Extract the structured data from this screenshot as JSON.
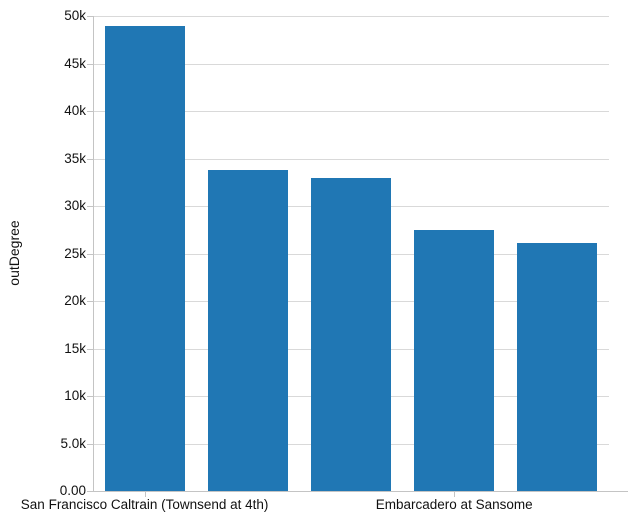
{
  "chart_data": {
    "type": "bar",
    "title": "",
    "xlabel": "",
    "ylabel": "outDegree",
    "categories": [
      "San Francisco Caltrain (Townsend at 4th)",
      "",
      "",
      "Embarcadero at Sansome",
      ""
    ],
    "values": [
      49000,
      33800,
      32900,
      27500,
      26100
    ],
    "ylim": [
      0,
      50000
    ],
    "y_tick_values": [
      0,
      5000,
      10000,
      15000,
      20000,
      25000,
      30000,
      35000,
      40000,
      45000,
      50000
    ],
    "y_tick_labels": [
      "0.00",
      "5.0k",
      "10k",
      "15k",
      "20k",
      "25k",
      "30k",
      "35k",
      "40k",
      "45k",
      "50k"
    ],
    "grid": true,
    "legend": false,
    "colors": {
      "bar": "#2077b4",
      "grid": "#d9d9d9",
      "axis": "#c4c4c4",
      "text": "#111111",
      "background": "#ffffff"
    }
  }
}
